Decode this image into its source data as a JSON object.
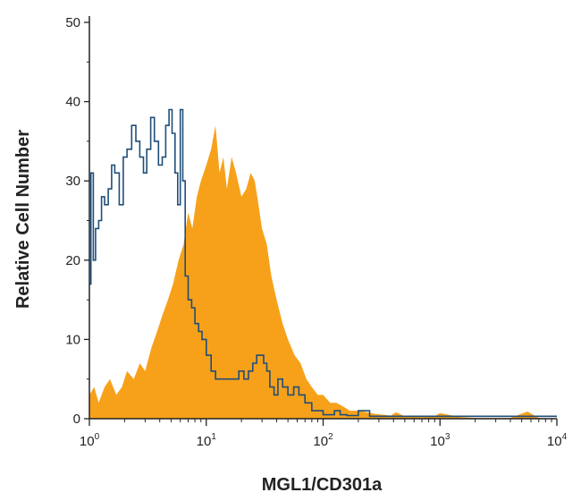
{
  "chart_data": {
    "type": "area",
    "title": "",
    "xlabel": "MGL1/CD301a",
    "ylabel": "Relative Cell Number",
    "x_scale": "log",
    "xlim": [
      1,
      10000
    ],
    "ylim": [
      0,
      50
    ],
    "grid": false,
    "legend": "none",
    "x_ticks": [
      {
        "base": "10",
        "exp": "0",
        "value": 1
      },
      {
        "base": "10",
        "exp": "1",
        "value": 10
      },
      {
        "base": "10",
        "exp": "2",
        "value": 100
      },
      {
        "base": "10",
        "exp": "3",
        "value": 1000
      },
      {
        "base": "10",
        "exp": "4",
        "value": 10000
      }
    ],
    "y_ticks": [
      {
        "label": "0",
        "value": 0
      },
      {
        "label": "10",
        "value": 10
      },
      {
        "label": "20",
        "value": 20
      },
      {
        "label": "30",
        "value": 30
      },
      {
        "label": "40",
        "value": 40
      },
      {
        "label": "50",
        "value": 50
      }
    ],
    "colors": {
      "filled": "#f7a11a",
      "outline": "#1f4e79",
      "axis": "#222222"
    },
    "series": [
      {
        "style": "filled",
        "x": [
          1,
          1.1,
          1.2,
          1.35,
          1.5,
          1.7,
          1.9,
          2.1,
          2.4,
          2.7,
          3.0,
          3.4,
          3.8,
          4.2,
          4.7,
          5.2,
          5.8,
          6.4,
          7.0,
          7.6,
          8.3,
          9.0,
          10,
          11,
          12,
          13,
          14,
          15,
          16.5,
          18,
          20,
          22,
          24,
          26,
          28,
          30,
          33,
          36,
          40,
          45,
          50,
          57,
          64,
          72,
          80,
          90,
          100,
          115,
          130,
          150,
          170,
          200,
          240,
          280,
          330,
          380,
          420,
          500,
          700,
          900,
          1000,
          1500,
          2000,
          3000,
          4000,
          5600,
          7000,
          10000
        ],
        "y": [
          3,
          4,
          2,
          4,
          5,
          3,
          4,
          6,
          5,
          7,
          6,
          9,
          11,
          13,
          15,
          17,
          20,
          22,
          26,
          24,
          28,
          30,
          32,
          34,
          37,
          31,
          33,
          29,
          33,
          31,
          28,
          29,
          31,
          30,
          27,
          24,
          22,
          18,
          15,
          12,
          10,
          8,
          7,
          5,
          4,
          3,
          3,
          2,
          2,
          1.5,
          1,
          1,
          0.8,
          0.6,
          0.5,
          0.4,
          0.8,
          0.3,
          0.2,
          0.3,
          0.7,
          0.2,
          0.1,
          0.1,
          0.1,
          0.9,
          0.1,
          0
        ]
      },
      {
        "style": "outline",
        "x": [
          1,
          1.03,
          1.08,
          1.13,
          1.2,
          1.27,
          1.35,
          1.45,
          1.55,
          1.65,
          1.8,
          1.95,
          2.1,
          2.3,
          2.5,
          2.7,
          2.9,
          3.1,
          3.35,
          3.6,
          3.9,
          4.2,
          4.5,
          4.8,
          5.1,
          5.4,
          5.7,
          6.0,
          6.3,
          6.6,
          7.0,
          7.5,
          8.0,
          8.6,
          9.2,
          10,
          11,
          12,
          13.5,
          15,
          17,
          19,
          21,
          23,
          25,
          27,
          29,
          31,
          33,
          35,
          38,
          41,
          45,
          50,
          56,
          62,
          70,
          80,
          90,
          100,
          110,
          125,
          140,
          160,
          180,
          200,
          250,
          300,
          400,
          500,
          700,
          1000,
          2000,
          4000,
          10000
        ],
        "y": [
          17,
          31,
          20,
          24,
          25,
          28,
          27,
          29,
          32,
          31,
          27,
          33,
          34,
          37,
          35,
          33,
          31,
          34,
          38,
          35,
          32,
          33,
          37,
          39,
          36,
          31,
          27,
          39,
          30,
          18,
          15,
          14,
          12,
          11,
          10,
          8,
          6,
          5,
          5,
          5,
          5,
          6,
          5,
          6,
          7,
          8,
          8,
          7,
          6,
          4,
          3,
          5,
          4,
          3,
          4,
          3,
          2,
          1,
          1,
          0.5,
          0.5,
          1,
          0.5,
          0.4,
          0.4,
          1,
          0.3,
          0.3,
          0.3,
          0.3,
          0.3,
          0.3,
          0.3,
          0.3,
          0.3
        ]
      }
    ]
  }
}
